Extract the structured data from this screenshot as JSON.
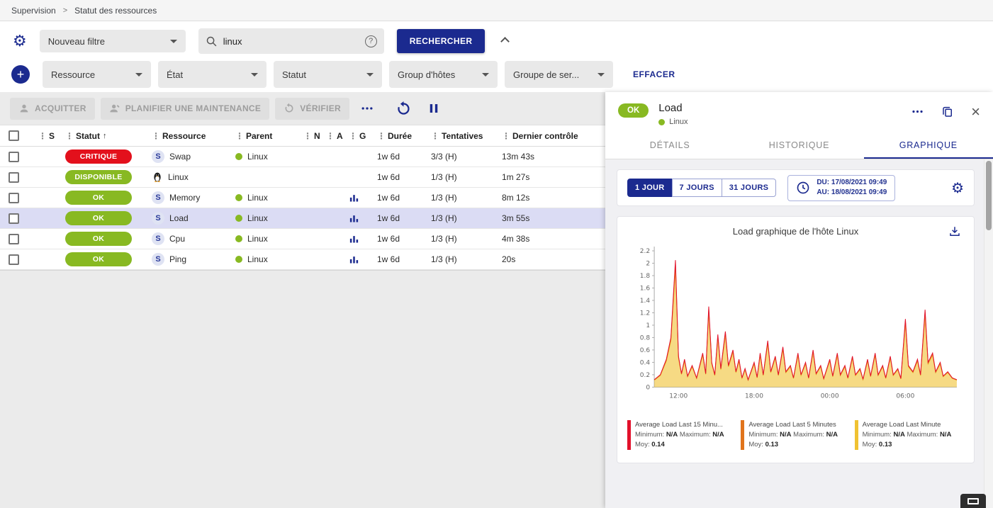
{
  "breadcrumb": {
    "section": "Supervision",
    "page": "Statut des ressources"
  },
  "filters": {
    "saved_filter_value": "Nouveau filtre",
    "search_value": "linux",
    "search_button": "RECHERCHER",
    "criteria": [
      "Ressource",
      "État",
      "Statut",
      "Group d'hôtes",
      "Groupe de ser..."
    ],
    "clear_button": "EFFACER"
  },
  "toolbar": {
    "acknowledge": "ACQUITTER",
    "downtime": "PLANIFIER UNE MAINTENANCE",
    "check": "VÉRIFIER"
  },
  "table": {
    "columns": [
      "S",
      "Statut",
      "Ressource",
      "Parent",
      "N",
      "A",
      "G",
      "Durée",
      "Tentatives",
      "Dernier contrôle"
    ],
    "sorted_column": "Statut",
    "rows": [
      {
        "status": "CRITIQUE",
        "status_color": "#e3101c",
        "icon": "service",
        "resource": "Swap",
        "parent": "Linux",
        "graph": false,
        "duration": "1w 6d",
        "tries": "3/3 (H)",
        "last_check": "13m 43s",
        "selected": false
      },
      {
        "status": "DISPONIBLE",
        "status_color": "#88b922",
        "icon": "host",
        "resource": "Linux",
        "parent": "",
        "graph": false,
        "duration": "1w 6d",
        "tries": "1/3 (H)",
        "last_check": "1m 27s",
        "selected": false
      },
      {
        "status": "OK",
        "status_color": "#88b922",
        "icon": "service",
        "resource": "Memory",
        "parent": "Linux",
        "graph": true,
        "duration": "1w 6d",
        "tries": "1/3 (H)",
        "last_check": "8m 12s",
        "selected": false
      },
      {
        "status": "OK",
        "status_color": "#88b922",
        "icon": "service",
        "resource": "Load",
        "parent": "Linux",
        "graph": true,
        "duration": "1w 6d",
        "tries": "1/3 (H)",
        "last_check": "3m 55s",
        "selected": true
      },
      {
        "status": "OK",
        "status_color": "#88b922",
        "icon": "service",
        "resource": "Cpu",
        "parent": "Linux",
        "graph": true,
        "duration": "1w 6d",
        "tries": "1/3 (H)",
        "last_check": "4m 38s",
        "selected": false
      },
      {
        "status": "OK",
        "status_color": "#88b922",
        "icon": "service",
        "resource": "Ping",
        "parent": "Linux",
        "graph": true,
        "duration": "1w 6d",
        "tries": "1/3 (H)",
        "last_check": "20s",
        "selected": false
      }
    ]
  },
  "panel": {
    "status": "OK",
    "status_color": "#88b922",
    "title": "Load",
    "parent": "Linux",
    "tabs": [
      "DÉTAILS",
      "HISTORIQUE",
      "GRAPHIQUE"
    ],
    "active_tab": "GRAPHIQUE",
    "time_ranges": [
      "1 JOUR",
      "7 JOURS",
      "31 JOURS"
    ],
    "active_range": "1 JOUR",
    "date_from": "DU: 17/08/2021 09:49",
    "date_to": "AU: 18/08/2021 09:49"
  },
  "chart_data": {
    "type": "area",
    "title": "Load graphique de l'hôte Linux",
    "ylim": [
      0,
      2.2
    ],
    "y_ticks": [
      0,
      0.2,
      0.4,
      0.6,
      0.8,
      1,
      1.2,
      1.4,
      1.6,
      1.8,
      2,
      2.2
    ],
    "x_ticks": [
      {
        "pos": 8,
        "label": "12:00"
      },
      {
        "pos": 33,
        "label": "18:00"
      },
      {
        "pos": 58,
        "label": "00:00"
      },
      {
        "pos": 83,
        "label": "06:00"
      }
    ],
    "legend_position": "bottom",
    "grid": false,
    "series": [
      {
        "name": "Average Load Last 15 Minu...",
        "color": "#e2112b",
        "min": "N/A",
        "max": "N/A",
        "avg": "0.14",
        "scale": 1.0,
        "fill": false
      },
      {
        "name": "Average Load Last 5 Minutes",
        "color": "#e0741c",
        "min": "N/A",
        "max": "N/A",
        "avg": "0.13",
        "scale": 0.97,
        "fill": false
      },
      {
        "name": "Average Load Last Minute",
        "color": "#f0c232",
        "min": "N/A",
        "max": "N/A",
        "avg": "0.13",
        "scale": 0.93,
        "fill": true
      }
    ],
    "points": [
      [
        0,
        0.12
      ],
      [
        2,
        0.2
      ],
      [
        4,
        0.45
      ],
      [
        5.5,
        0.8
      ],
      [
        7,
        2.05
      ],
      [
        8,
        0.5
      ],
      [
        9,
        0.22
      ],
      [
        10,
        0.45
      ],
      [
        11,
        0.18
      ],
      [
        12.5,
        0.35
      ],
      [
        14,
        0.15
      ],
      [
        16,
        0.55
      ],
      [
        17,
        0.22
      ],
      [
        18,
        1.3
      ],
      [
        19,
        0.4
      ],
      [
        20,
        0.2
      ],
      [
        21,
        0.85
      ],
      [
        22,
        0.3
      ],
      [
        23.5,
        0.9
      ],
      [
        24.5,
        0.35
      ],
      [
        26,
        0.6
      ],
      [
        27,
        0.25
      ],
      [
        28,
        0.45
      ],
      [
        29,
        0.15
      ],
      [
        30,
        0.3
      ],
      [
        31,
        0.12
      ],
      [
        33,
        0.4
      ],
      [
        34,
        0.16
      ],
      [
        35,
        0.55
      ],
      [
        36,
        0.2
      ],
      [
        37.5,
        0.75
      ],
      [
        38.5,
        0.25
      ],
      [
        40,
        0.5
      ],
      [
        41,
        0.2
      ],
      [
        42.5,
        0.65
      ],
      [
        43.5,
        0.25
      ],
      [
        45,
        0.35
      ],
      [
        46,
        0.15
      ],
      [
        47.5,
        0.55
      ],
      [
        48.5,
        0.2
      ],
      [
        50,
        0.4
      ],
      [
        51,
        0.15
      ],
      [
        52.5,
        0.6
      ],
      [
        53.5,
        0.22
      ],
      [
        55,
        0.35
      ],
      [
        56,
        0.14
      ],
      [
        58,
        0.45
      ],
      [
        59,
        0.18
      ],
      [
        60.5,
        0.55
      ],
      [
        61.5,
        0.2
      ],
      [
        63,
        0.35
      ],
      [
        64,
        0.15
      ],
      [
        65.5,
        0.5
      ],
      [
        66.5,
        0.2
      ],
      [
        68,
        0.3
      ],
      [
        69,
        0.13
      ],
      [
        70.5,
        0.45
      ],
      [
        71.5,
        0.18
      ],
      [
        73,
        0.55
      ],
      [
        74,
        0.2
      ],
      [
        75.5,
        0.35
      ],
      [
        76.5,
        0.15
      ],
      [
        78,
        0.5
      ],
      [
        79,
        0.2
      ],
      [
        80.5,
        0.3
      ],
      [
        81.5,
        0.14
      ],
      [
        83,
        1.1
      ],
      [
        84,
        0.35
      ],
      [
        85.5,
        0.25
      ],
      [
        87,
        0.45
      ],
      [
        88,
        0.2
      ],
      [
        89.5,
        1.25
      ],
      [
        90.5,
        0.4
      ],
      [
        92,
        0.55
      ],
      [
        93,
        0.25
      ],
      [
        94.5,
        0.4
      ],
      [
        95.5,
        0.18
      ],
      [
        97,
        0.25
      ],
      [
        98.5,
        0.15
      ],
      [
        100,
        0.12
      ]
    ]
  }
}
